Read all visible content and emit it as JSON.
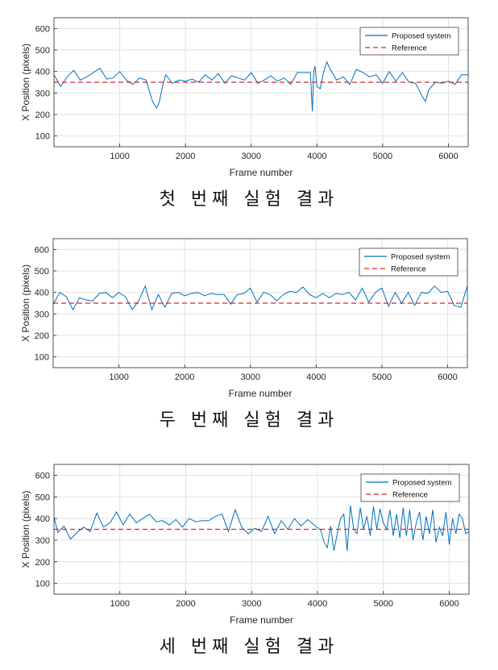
{
  "chart_data": [
    {
      "type": "line",
      "xlabel": "Frame number",
      "ylabel": "X Position (pixels)",
      "xlim": [
        0,
        6300
      ],
      "ylim": [
        50,
        650
      ],
      "xticks": [
        1000,
        2000,
        3000,
        4000,
        5000,
        6000
      ],
      "yticks": [
        100,
        200,
        300,
        400,
        500,
        600
      ],
      "grid": true,
      "legend": "top-right",
      "caption": "첫 번째 실험 결과",
      "series": [
        {
          "name": "Proposed system",
          "color": "#0072BD",
          "style": "solid",
          "x": [
            0,
            100,
            200,
            300,
            400,
            500,
            600,
            700,
            800,
            900,
            1000,
            1100,
            1200,
            1300,
            1400,
            1500,
            1560,
            1600,
            1650,
            1700,
            1800,
            1900,
            2000,
            2100,
            2200,
            2300,
            2400,
            2500,
            2600,
            2700,
            2800,
            2900,
            3000,
            3100,
            3200,
            3300,
            3400,
            3500,
            3600,
            3700,
            3800,
            3900,
            3930,
            3950,
            3970,
            4000,
            4050,
            4100,
            4150,
            4200,
            4300,
            4400,
            4500,
            4600,
            4700,
            4800,
            4900,
            5000,
            5100,
            5200,
            5300,
            5400,
            5500,
            5600,
            5650,
            5700,
            5800,
            5900,
            6000,
            6100,
            6200,
            6300
          ],
          "y": [
            385,
            330,
            375,
            405,
            360,
            375,
            395,
            415,
            365,
            370,
            400,
            360,
            340,
            370,
            360,
            260,
            230,
            255,
            330,
            385,
            345,
            360,
            355,
            365,
            350,
            385,
            360,
            390,
            345,
            380,
            370,
            360,
            395,
            345,
            360,
            380,
            355,
            370,
            340,
            395,
            395,
            395,
            215,
            400,
            425,
            330,
            320,
            395,
            445,
            410,
            360,
            375,
            340,
            410,
            395,
            375,
            385,
            345,
            400,
            355,
            395,
            350,
            345,
            285,
            260,
            315,
            350,
            345,
            355,
            340,
            385,
            385
          ]
        },
        {
          "name": "Reference",
          "color": "#D9262B",
          "style": "dashed",
          "x": [
            0,
            6300
          ],
          "y": [
            350,
            350
          ]
        }
      ]
    },
    {
      "type": "line",
      "xlabel": "Frame number",
      "ylabel": "X Position (pixels)",
      "xlim": [
        0,
        6300
      ],
      "ylim": [
        50,
        650
      ],
      "xticks": [
        1000,
        2000,
        3000,
        4000,
        5000,
        6000
      ],
      "yticks": [
        100,
        200,
        300,
        400,
        500,
        600
      ],
      "grid": true,
      "legend": "top-right",
      "caption": "두 번째 실험 결과",
      "series": [
        {
          "name": "Proposed system",
          "color": "#0072BD",
          "style": "solid",
          "x": [
            0,
            100,
            200,
            300,
            400,
            500,
            600,
            700,
            800,
            900,
            1000,
            1100,
            1200,
            1300,
            1400,
            1500,
            1600,
            1700,
            1800,
            1900,
            2000,
            2100,
            2200,
            2300,
            2400,
            2500,
            2600,
            2700,
            2800,
            2900,
            3000,
            3100,
            3200,
            3300,
            3400,
            3500,
            3600,
            3700,
            3800,
            3900,
            4000,
            4100,
            4200,
            4300,
            4400,
            4500,
            4600,
            4700,
            4800,
            4900,
            5000,
            5100,
            5200,
            5300,
            5400,
            5500,
            5600,
            5700,
            5800,
            5900,
            6000,
            6100,
            6200,
            6300
          ],
          "y": [
            345,
            400,
            380,
            320,
            375,
            365,
            360,
            395,
            400,
            375,
            400,
            380,
            320,
            360,
            430,
            320,
            390,
            330,
            395,
            400,
            385,
            395,
            400,
            385,
            395,
            390,
            390,
            345,
            390,
            395,
            420,
            355,
            400,
            390,
            360,
            390,
            405,
            400,
            425,
            390,
            375,
            395,
            375,
            395,
            390,
            400,
            365,
            420,
            355,
            400,
            420,
            335,
            400,
            350,
            400,
            340,
            400,
            395,
            430,
            400,
            405,
            340,
            330,
            430
          ]
        },
        {
          "name": "Reference",
          "color": "#D9262B",
          "style": "dashed",
          "x": [
            0,
            6300
          ],
          "y": [
            350,
            350
          ]
        }
      ]
    },
    {
      "type": "line",
      "xlabel": "Frame number",
      "ylabel": "X Position (pixels)",
      "xlim": [
        0,
        6300
      ],
      "ylim": [
        50,
        650
      ],
      "xticks": [
        1000,
        2000,
        3000,
        4000,
        5000,
        6000
      ],
      "yticks": [
        100,
        200,
        300,
        400,
        500,
        600
      ],
      "grid": true,
      "legend": "top-right",
      "caption": "세 번째 실험 결과",
      "series": [
        {
          "name": "Proposed system",
          "color": "#0072BD",
          "style": "solid",
          "x": [
            0,
            60,
            150,
            250,
            350,
            450,
            550,
            650,
            750,
            850,
            950,
            1050,
            1150,
            1250,
            1350,
            1450,
            1550,
            1650,
            1750,
            1850,
            1950,
            2050,
            2150,
            2250,
            2350,
            2450,
            2550,
            2650,
            2750,
            2850,
            2950,
            3050,
            3150,
            3250,
            3350,
            3450,
            3550,
            3650,
            3750,
            3850,
            3950,
            4050,
            4100,
            4150,
            4200,
            4250,
            4300,
            4350,
            4400,
            4450,
            4500,
            4550,
            4600,
            4650,
            4700,
            4750,
            4800,
            4850,
            4900,
            4950,
            5000,
            5050,
            5100,
            5150,
            5200,
            5250,
            5300,
            5350,
            5400,
            5450,
            5500,
            5550,
            5600,
            5650,
            5700,
            5750,
            5800,
            5850,
            5900,
            5950,
            6000,
            6050,
            6100,
            6150,
            6200,
            6250,
            6300
          ],
          "y": [
            405,
            335,
            365,
            305,
            335,
            360,
            340,
            425,
            360,
            380,
            430,
            370,
            420,
            380,
            400,
            420,
            385,
            390,
            370,
            395,
            360,
            400,
            385,
            390,
            390,
            410,
            420,
            340,
            440,
            360,
            330,
            355,
            340,
            410,
            330,
            390,
            350,
            400,
            365,
            395,
            370,
            345,
            290,
            265,
            365,
            250,
            330,
            400,
            420,
            250,
            460,
            350,
            330,
            450,
            350,
            410,
            320,
            455,
            350,
            445,
            380,
            350,
            440,
            320,
            420,
            310,
            450,
            320,
            440,
            300,
            380,
            430,
            300,
            410,
            330,
            440,
            290,
            360,
            320,
            430,
            280,
            400,
            330,
            420,
            400,
            330,
            340
          ]
        },
        {
          "name": "Reference",
          "color": "#D9262B",
          "style": "dashed",
          "x": [
            0,
            6300
          ],
          "y": [
            350,
            350
          ]
        }
      ]
    }
  ]
}
